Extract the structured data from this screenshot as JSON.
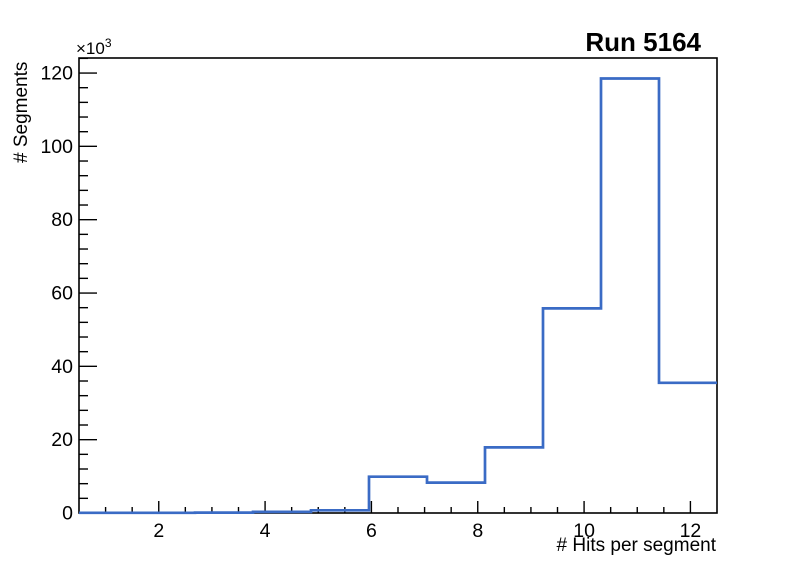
{
  "window": {
    "background": "#ffffff"
  },
  "chart_data": {
    "type": "histogram-step",
    "title": "Run 5164",
    "xlabel": "# Hits per segment",
    "ylabel": "# Segments",
    "y_scale_base": "×10",
    "y_scale_exp": "3",
    "y_unit": "thousands",
    "x_range": [
      0.5,
      12.5
    ],
    "y_range": [
      0,
      124.1
    ],
    "bin_edges": [
      0.5,
      1.591,
      2.682,
      3.773,
      4.864,
      5.955,
      7.045,
      8.136,
      9.227,
      10.318,
      11.409,
      12.5
    ],
    "values_thousands": [
      0.05,
      0.05,
      0.1,
      0.3,
      0.75,
      9.9,
      8.3,
      17.9,
      55.8,
      118.5,
      35.5
    ],
    "x_major_ticks": [
      2,
      4,
      6,
      8,
      10,
      12
    ],
    "x_minor_step": 0.5,
    "y_major_ticks": [
      0,
      20,
      40,
      60,
      80,
      100,
      120
    ],
    "y_minor_step": 4,
    "grid": false,
    "legend": null,
    "line_color": "#3a6bc5",
    "axis_color": "#000000",
    "text_color": "#000000"
  }
}
